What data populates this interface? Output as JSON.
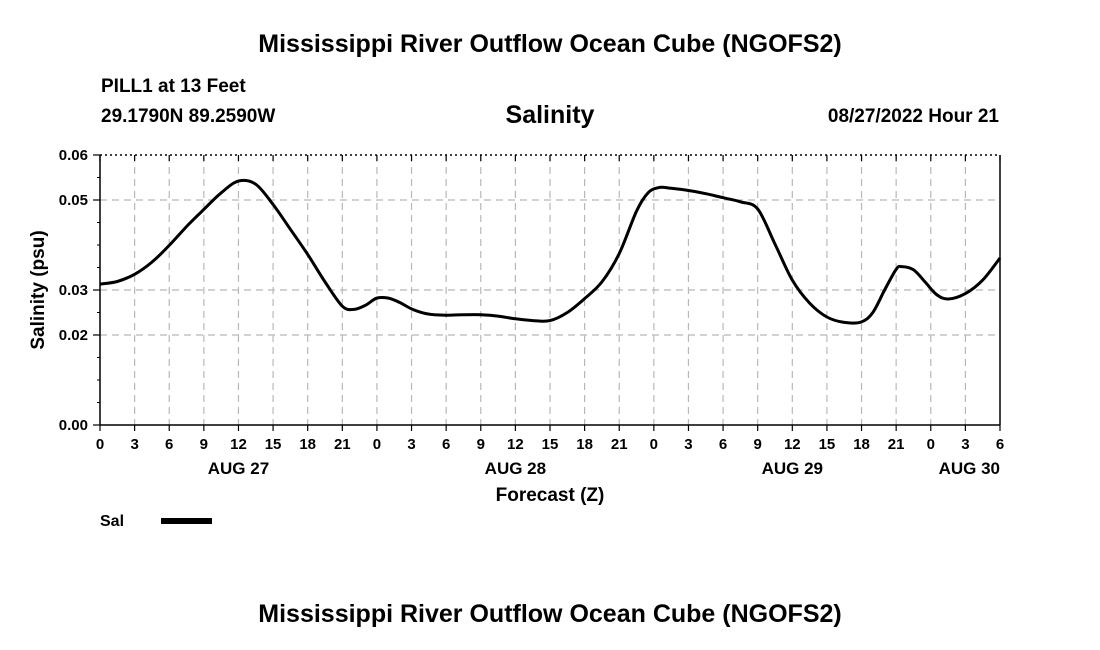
{
  "page": {
    "title_top": "Mississippi River Outflow Ocean Cube (NGOFS2)",
    "title_bottom": "Mississippi River Outflow Ocean Cube (NGOFS2)",
    "station": "PILL1 at 13 Feet",
    "coords": "29.1790N  89.2590W",
    "parameter": "Salinity",
    "timestamp": "08/27/2022 Hour 21"
  },
  "chart_data": {
    "type": "line",
    "title": "Salinity",
    "xlabel": "Forecast (Z)",
    "ylabel": "Salinity (psu)",
    "ylim": [
      0.0,
      0.06
    ],
    "xlim": [
      0,
      78
    ],
    "x_unit": "hours from 00Z Aug 27",
    "y_ticks": [
      {
        "value": 0.0,
        "label": "0.00"
      },
      {
        "value": 0.02,
        "label": "0.02"
      },
      {
        "value": 0.03,
        "label": "0.03"
      },
      {
        "value": 0.05,
        "label": "0.05"
      },
      {
        "value": 0.06,
        "label": "0.06"
      }
    ],
    "x_ticks": [
      {
        "value": 0,
        "label": "0"
      },
      {
        "value": 3,
        "label": "3"
      },
      {
        "value": 6,
        "label": "6"
      },
      {
        "value": 9,
        "label": "9"
      },
      {
        "value": 12,
        "label": "12"
      },
      {
        "value": 15,
        "label": "15"
      },
      {
        "value": 18,
        "label": "18"
      },
      {
        "value": 21,
        "label": "21"
      },
      {
        "value": 24,
        "label": "0"
      },
      {
        "value": 27,
        "label": "3"
      },
      {
        "value": 30,
        "label": "6"
      },
      {
        "value": 33,
        "label": "9"
      },
      {
        "value": 36,
        "label": "12"
      },
      {
        "value": 39,
        "label": "15"
      },
      {
        "value": 42,
        "label": "18"
      },
      {
        "value": 45,
        "label": "21"
      },
      {
        "value": 48,
        "label": "0"
      },
      {
        "value": 51,
        "label": "3"
      },
      {
        "value": 54,
        "label": "6"
      },
      {
        "value": 57,
        "label": "9"
      },
      {
        "value": 60,
        "label": "12"
      },
      {
        "value": 63,
        "label": "15"
      },
      {
        "value": 66,
        "label": "18"
      },
      {
        "value": 69,
        "label": "21"
      },
      {
        "value": 72,
        "label": "0"
      },
      {
        "value": 75,
        "label": "3"
      },
      {
        "value": 78,
        "label": "6"
      }
    ],
    "date_labels": [
      {
        "value": 12,
        "label": "AUG 27"
      },
      {
        "value": 36,
        "label": "AUG 28"
      },
      {
        "value": 60,
        "label": "AUG 29"
      },
      {
        "value": 78,
        "label": "AUG 30"
      }
    ],
    "grid": true,
    "legend": {
      "position": "bottom-left",
      "entries": [
        "Sal"
      ]
    },
    "series": [
      {
        "name": "Sal",
        "x": [
          0,
          1.5,
          3,
          4.5,
          6,
          7.5,
          9,
          10.5,
          12,
          13.5,
          15,
          16.5,
          18,
          19.5,
          21,
          22,
          23,
          24,
          25,
          26,
          27,
          28,
          29,
          30,
          31.5,
          33,
          34.5,
          36,
          37.5,
          39,
          40.5,
          42,
          43.5,
          45,
          46.5,
          47.5,
          48.5,
          49.5,
          51,
          52.5,
          54,
          55.5,
          57,
          58.5,
          60,
          61.5,
          63,
          64.5,
          66,
          67,
          68,
          69,
          69.5,
          70.5,
          71.5,
          72.5,
          73.5,
          75,
          76.5,
          78
        ],
        "values": [
          0.0313,
          0.0319,
          0.0335,
          0.0362,
          0.0399,
          0.0441,
          0.0479,
          0.0516,
          0.0542,
          0.0535,
          0.049,
          0.0435,
          0.0379,
          0.0318,
          0.0264,
          0.0257,
          0.0266,
          0.0282,
          0.0282,
          0.0272,
          0.0258,
          0.0249,
          0.0245,
          0.0244,
          0.0245,
          0.0245,
          0.0242,
          0.0236,
          0.0232,
          0.0232,
          0.025,
          0.0281,
          0.0318,
          0.0381,
          0.0475,
          0.0516,
          0.0528,
          0.0526,
          0.0521,
          0.0514,
          0.0505,
          0.0496,
          0.048,
          0.0402,
          0.0322,
          0.0271,
          0.024,
          0.0228,
          0.0229,
          0.0251,
          0.03,
          0.0346,
          0.0352,
          0.0345,
          0.0318,
          0.029,
          0.028,
          0.0292,
          0.0322,
          0.0371
        ]
      }
    ]
  }
}
